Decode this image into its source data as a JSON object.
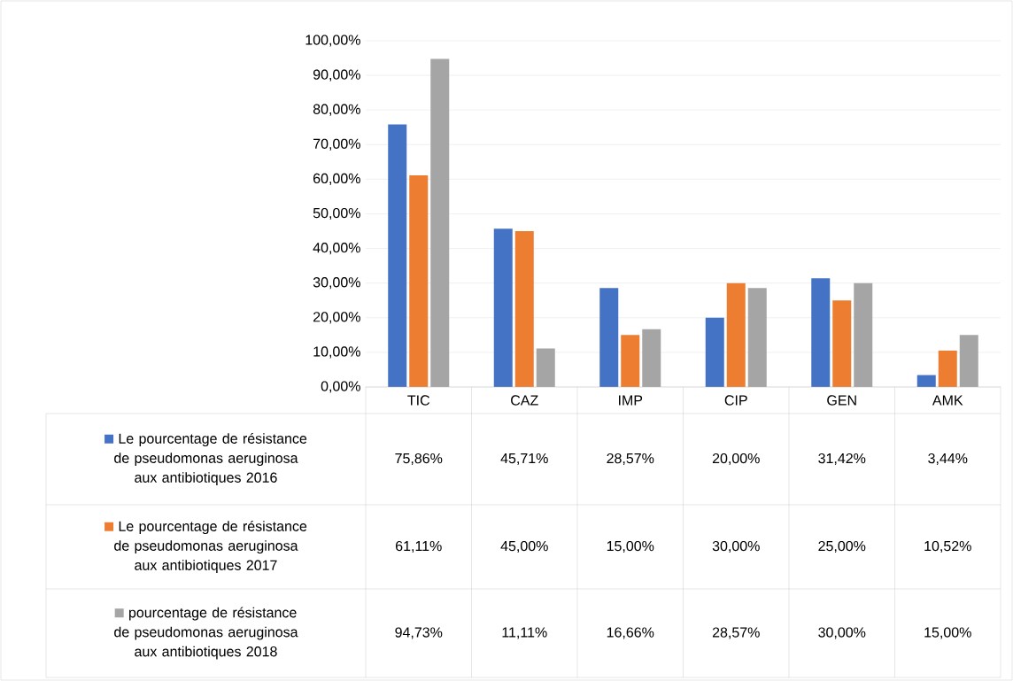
{
  "chart_data": {
    "type": "bar",
    "categories": [
      "TIC",
      "CAZ",
      "IMP",
      "CIP",
      "GEN",
      "AMK"
    ],
    "series": [
      {
        "name": "Le pourcentage de résistance de pseudomonas aeruginosa aux antibiotiques 2016",
        "color": "#4472c4",
        "values": [
          75.86,
          45.71,
          28.57,
          20.0,
          31.42,
          3.44
        ],
        "value_labels": [
          "75,86%",
          "45,71%",
          "28,57%",
          "20,00%",
          "31,42%",
          "3,44%"
        ]
      },
      {
        "name": "Le pourcentage de résistance de pseudomonas aeruginosa aux antibiotiques 2017",
        "color": "#ed7d31",
        "values": [
          61.11,
          45.0,
          15.0,
          30.0,
          25.0,
          10.52
        ],
        "value_labels": [
          "61,11%",
          "45,00%",
          "15,00%",
          "30,00%",
          "25,00%",
          "10,52%"
        ]
      },
      {
        "name": "pourcentage de résistance de pseudomonas aeruginosa aux antibiotiques 2018",
        "color": "#a5a5a5",
        "values": [
          94.73,
          11.11,
          16.66,
          28.57,
          30.0,
          15.0
        ],
        "value_labels": [
          "94,73%",
          "11,11%",
          "16,66%",
          "28,57%",
          "30,00%",
          "15,00%"
        ]
      }
    ],
    "ylim": [
      0,
      100
    ],
    "yticks": [
      {
        "value": 0,
        "label": "0,00%"
      },
      {
        "value": 10,
        "label": "10,00%"
      },
      {
        "value": 20,
        "label": "20,00%"
      },
      {
        "value": 30,
        "label": "30,00%"
      },
      {
        "value": 40,
        "label": "40,00%"
      },
      {
        "value": 50,
        "label": "50,00%"
      },
      {
        "value": 60,
        "label": "60,00%"
      },
      {
        "value": 70,
        "label": "70,00%"
      },
      {
        "value": 80,
        "label": "80,00%"
      },
      {
        "value": 90,
        "label": "90,00%"
      },
      {
        "value": 100,
        "label": "100,00%"
      }
    ],
    "grid": "y",
    "legend": "bottom"
  }
}
